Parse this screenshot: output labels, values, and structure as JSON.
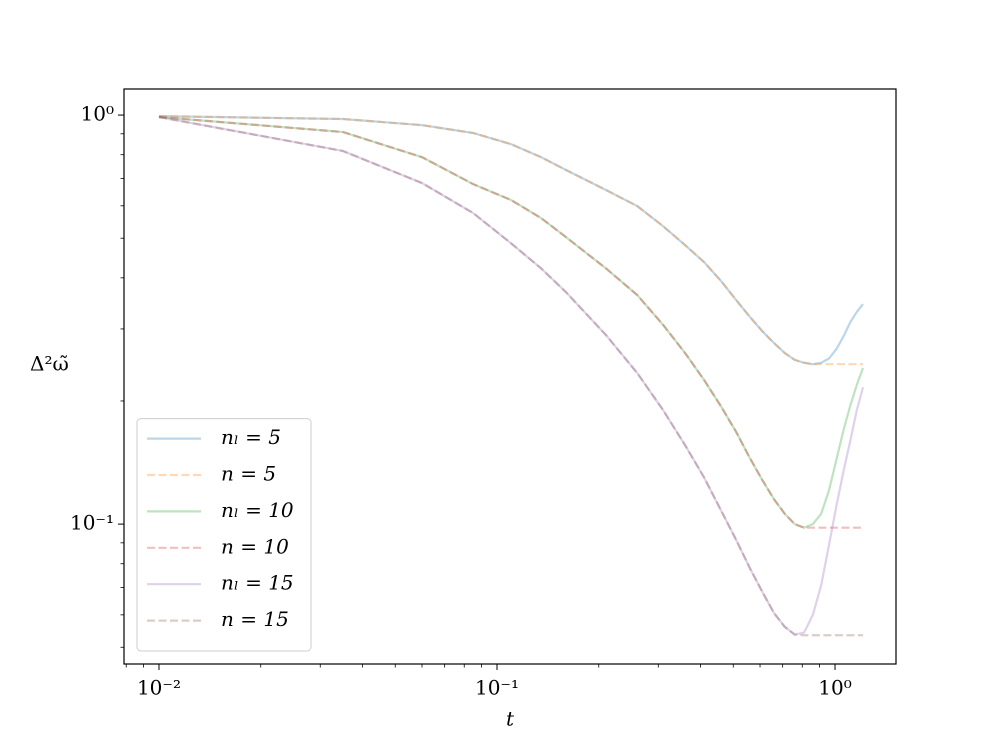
{
  "chart_data": {
    "type": "line",
    "xlabel": "t",
    "ylabel": "Δ²ω̃",
    "xscale": "log",
    "yscale": "log",
    "xlim": [
      0.00788,
      1.515
    ],
    "ylim": [
      0.0455,
      1.158
    ],
    "xticks": [
      {
        "value": 0.01,
        "label": "10⁻²"
      },
      {
        "value": 0.1,
        "label": "10⁻¹"
      },
      {
        "value": 1,
        "label": "10⁰"
      }
    ],
    "yticks": [
      {
        "value": 0.1,
        "label": "10⁻¹"
      },
      {
        "value": 1,
        "label": "10⁰"
      }
    ],
    "xminorticks": [
      0.008,
      0.009,
      0.02,
      0.03,
      0.04,
      0.05,
      0.06,
      0.07,
      0.08,
      0.09,
      0.2,
      0.3,
      0.4,
      0.5,
      0.6,
      0.7,
      0.8,
      0.9
    ],
    "yminorticks": [
      0.05,
      0.06,
      0.07,
      0.08,
      0.09,
      0.2,
      0.3,
      0.4,
      0.5,
      0.6,
      0.7,
      0.8,
      0.9
    ],
    "legend": "lower left",
    "alpha": 0.3,
    "x": [
      0.01,
      0.035,
      0.06,
      0.085,
      0.11,
      0.135,
      0.16,
      0.21,
      0.26,
      0.31,
      0.36,
      0.41,
      0.46,
      0.51,
      0.56,
      0.61,
      0.66,
      0.71,
      0.76,
      0.81,
      0.86,
      0.91,
      0.96,
      1.01,
      1.06,
      1.11,
      1.16,
      1.21
    ],
    "series": [
      {
        "name": "nₗ = 5",
        "color": "#1f77b4",
        "linestyle": "solid",
        "values": [
          0.994,
          0.978,
          0.945,
          0.904,
          0.849,
          0.789,
          0.734,
          0.656,
          0.599,
          0.535,
          0.481,
          0.437,
          0.393,
          0.353,
          0.321,
          0.296,
          0.277,
          0.262,
          0.252,
          0.248,
          0.246,
          0.248,
          0.254,
          0.268,
          0.288,
          0.312,
          0.33,
          0.345
        ]
      },
      {
        "name": "n = 5",
        "color": "#ff7f0e",
        "linestyle": "dashed",
        "values": [
          0.994,
          0.978,
          0.945,
          0.904,
          0.849,
          0.789,
          0.734,
          0.656,
          0.599,
          0.535,
          0.481,
          0.437,
          0.393,
          0.353,
          0.321,
          0.296,
          0.277,
          0.262,
          0.252,
          0.248,
          0.246,
          0.246,
          0.246,
          0.246,
          0.246,
          0.246,
          0.246,
          0.246
        ]
      },
      {
        "name": "nₗ = 10",
        "color": "#2ca02c",
        "linestyle": "solid",
        "values": [
          0.989,
          0.909,
          0.789,
          0.678,
          0.62,
          0.56,
          0.503,
          0.422,
          0.363,
          0.307,
          0.262,
          0.225,
          0.194,
          0.168,
          0.145,
          0.128,
          0.115,
          0.106,
          0.1,
          0.098,
          0.1,
          0.106,
          0.121,
          0.144,
          0.17,
          0.195,
          0.219,
          0.241
        ]
      },
      {
        "name": "n = 10",
        "color": "#d62728",
        "linestyle": "dashed",
        "values": [
          0.989,
          0.909,
          0.789,
          0.678,
          0.62,
          0.56,
          0.503,
          0.422,
          0.363,
          0.307,
          0.262,
          0.225,
          0.194,
          0.168,
          0.145,
          0.128,
          0.115,
          0.106,
          0.1,
          0.098,
          0.098,
          0.098,
          0.098,
          0.098,
          0.098,
          0.098,
          0.098,
          0.098
        ]
      },
      {
        "name": "nₗ = 15",
        "color": "#9467bd",
        "linestyle": "solid",
        "values": [
          0.989,
          0.817,
          0.682,
          0.576,
          0.486,
          0.422,
          0.369,
          0.29,
          0.234,
          0.19,
          0.156,
          0.13,
          0.108,
          0.0915,
          0.078,
          0.0682,
          0.0606,
          0.0561,
          0.0537,
          0.0543,
          0.06,
          0.0709,
          0.089,
          0.111,
          0.135,
          0.16,
          0.19,
          0.216
        ]
      },
      {
        "name": "n = 15",
        "color": "#8c564b",
        "linestyle": "dashed",
        "values": [
          0.989,
          0.817,
          0.682,
          0.576,
          0.486,
          0.422,
          0.369,
          0.29,
          0.234,
          0.19,
          0.156,
          0.13,
          0.108,
          0.0915,
          0.078,
          0.0682,
          0.0606,
          0.0561,
          0.0537,
          0.0535,
          0.0535,
          0.0535,
          0.0535,
          0.0535,
          0.0535,
          0.0535,
          0.0535,
          0.0535
        ]
      }
    ]
  }
}
